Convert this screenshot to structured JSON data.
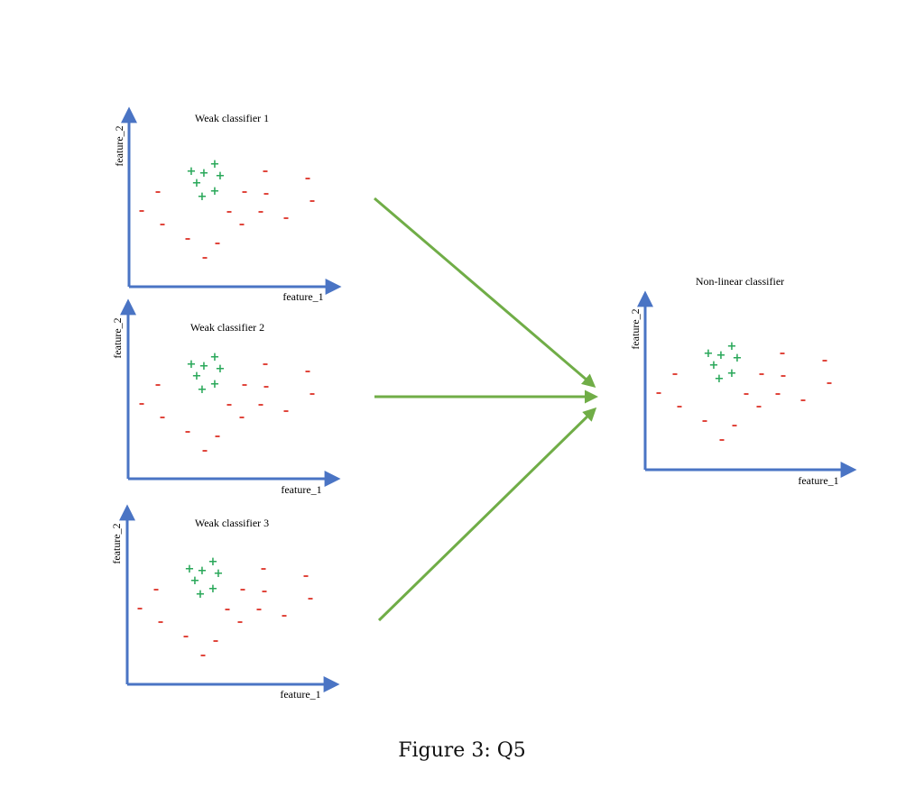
{
  "panels": [
    {
      "title": "Weak classifier 1",
      "xlabel": "feature_1",
      "ylabel": "feature_2"
    },
    {
      "title": "Weak classifier 2",
      "xlabel": "feature_1",
      "ylabel": "feature_2"
    },
    {
      "title": "Weak classifier 3",
      "xlabel": "feature_1",
      "ylabel": "feature_2"
    },
    {
      "title": "Non-linear classifier",
      "xlabel": "feature_1",
      "ylabel": "feature_2"
    }
  ],
  "markers": {
    "positive": "+",
    "negative": "-"
  },
  "colors": {
    "axis": "#4a74c4",
    "arrow": "#70ad47",
    "positive": "#2aa85a",
    "negative": "#e0463c"
  },
  "caption": "Figure 3: Q5"
}
